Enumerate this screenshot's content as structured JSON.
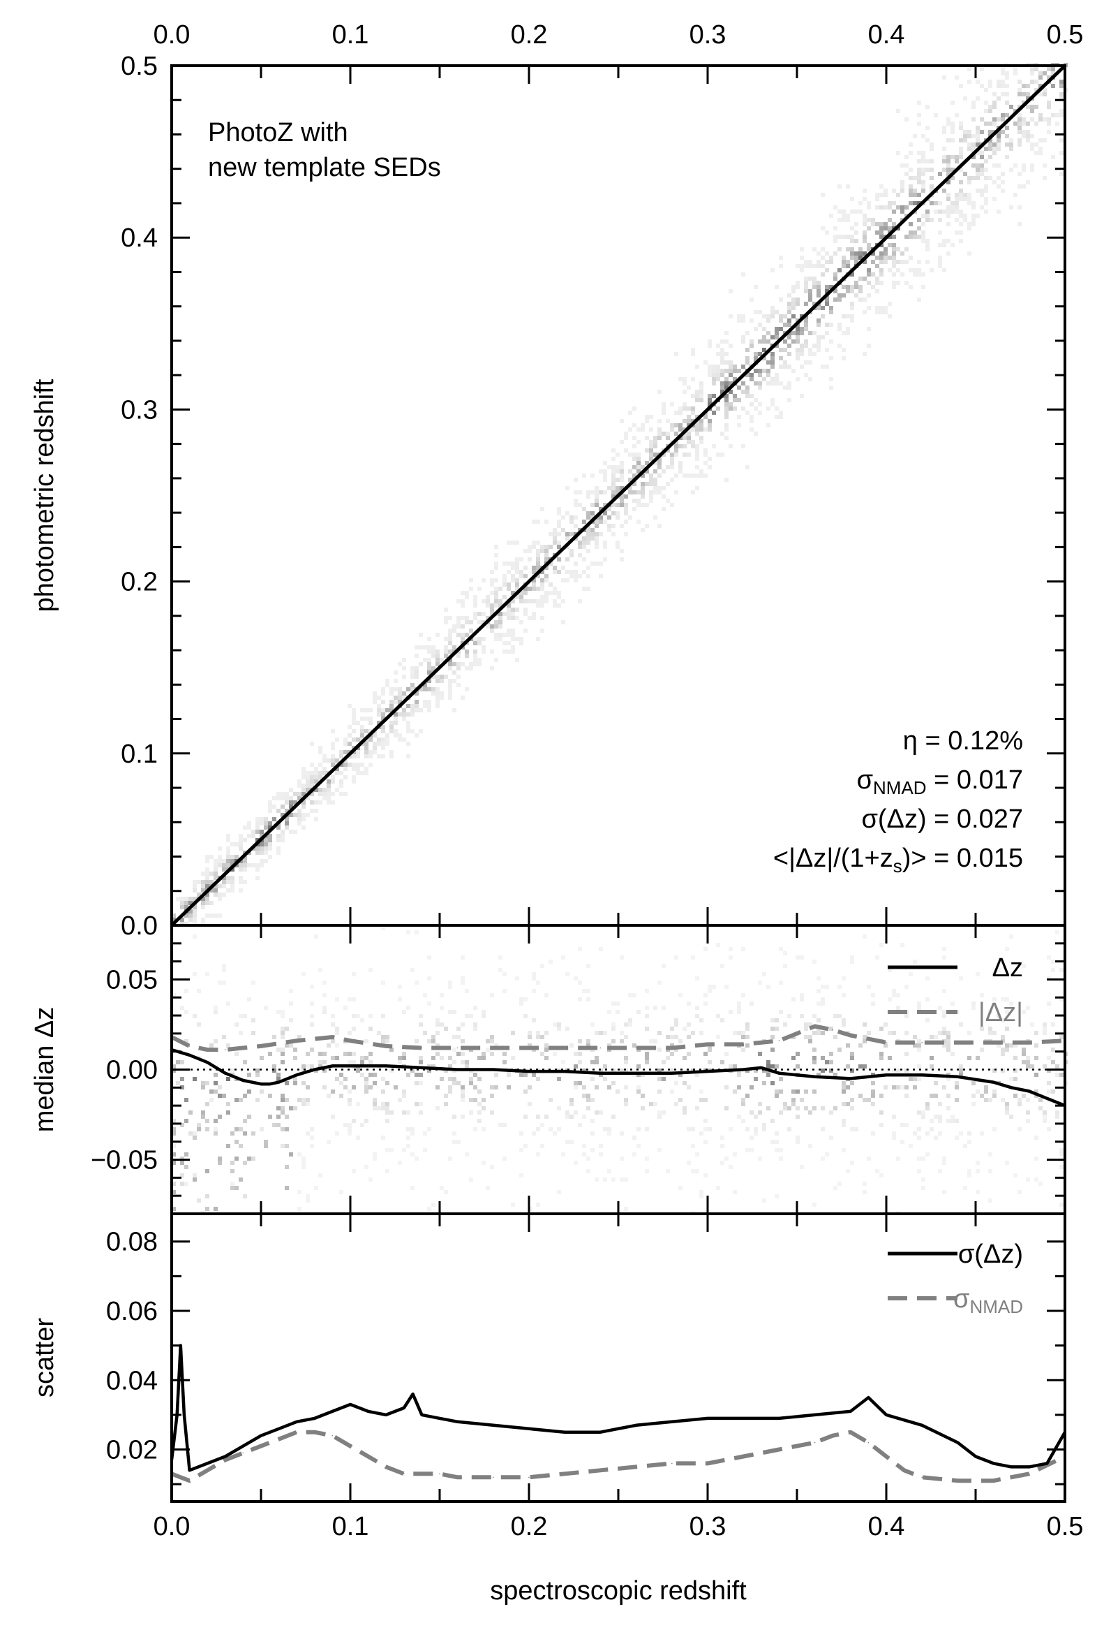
{
  "chart_data": [
    {
      "panel": "top",
      "type": "scatter",
      "title": "",
      "annotation_lines": [
        "PhotoZ with",
        "new template SEDs"
      ],
      "xlabel": "",
      "ylabel": "photometric redshift",
      "xlim": [
        0.0,
        0.5
      ],
      "ylim": [
        0.0,
        0.5
      ],
      "xticks": [
        "0.0",
        "0.1",
        "0.2",
        "0.3",
        "0.4",
        "0.5"
      ],
      "yticks": [
        "0.0",
        "0.1",
        "0.2",
        "0.3",
        "0.4",
        "0.5"
      ],
      "top_axis_ticks": [
        "0.0",
        "0.1",
        "0.2",
        "0.3",
        "0.4",
        "0.5"
      ],
      "reference_line": {
        "x": [
          0.0,
          0.5
        ],
        "y": [
          0.0,
          0.5
        ]
      },
      "density": "2D histogram of galaxies concentrated along the one-to-one line",
      "stats": [
        {
          "symbol": "η",
          "sub": "",
          "rest": " = 0.12%"
        },
        {
          "symbol": "σ",
          "sub": "NMAD",
          "rest": " = 0.017"
        },
        {
          "symbol": "σ",
          "sub": "",
          "rest": "(Δz) = 0.027"
        },
        {
          "symbol": "<|Δz|/(1+z",
          "sub": "s",
          "rest": ")> = 0.015"
        }
      ]
    },
    {
      "panel": "middle",
      "type": "line",
      "ylabel": "median Δz",
      "xlim": [
        0.0,
        0.5
      ],
      "ylim": [
        -0.08,
        0.08
      ],
      "yticks": [
        "0.05",
        "0.00",
        "−0.05"
      ],
      "zero_line": 0.0,
      "series": [
        {
          "name": "Δz",
          "color": "#000000",
          "style": "solid",
          "x": [
            0.0,
            0.01,
            0.02,
            0.03,
            0.04,
            0.05,
            0.055,
            0.06,
            0.07,
            0.08,
            0.09,
            0.1,
            0.12,
            0.14,
            0.16,
            0.18,
            0.2,
            0.22,
            0.24,
            0.26,
            0.28,
            0.3,
            0.32,
            0.33,
            0.34,
            0.36,
            0.38,
            0.4,
            0.42,
            0.44,
            0.46,
            0.47,
            0.48,
            0.49,
            0.5
          ],
          "y": [
            0.011,
            0.008,
            0.004,
            -0.002,
            -0.006,
            -0.008,
            -0.008,
            -0.007,
            -0.003,
            0.0,
            0.002,
            0.002,
            0.002,
            0.001,
            0.0,
            0.0,
            -0.001,
            -0.001,
            -0.002,
            -0.002,
            -0.002,
            -0.001,
            0.0,
            0.001,
            -0.002,
            -0.004,
            -0.005,
            -0.003,
            -0.003,
            -0.004,
            -0.007,
            -0.01,
            -0.012,
            -0.016,
            -0.02
          ]
        },
        {
          "name": "|Δz|",
          "color": "#808080",
          "style": "dashed",
          "x": [
            0.0,
            0.01,
            0.02,
            0.03,
            0.05,
            0.07,
            0.09,
            0.1,
            0.12,
            0.14,
            0.16,
            0.18,
            0.2,
            0.22,
            0.24,
            0.26,
            0.28,
            0.3,
            0.32,
            0.34,
            0.35,
            0.36,
            0.37,
            0.38,
            0.39,
            0.4,
            0.42,
            0.44,
            0.46,
            0.48,
            0.5
          ],
          "y": [
            0.018,
            0.013,
            0.011,
            0.011,
            0.013,
            0.016,
            0.018,
            0.016,
            0.013,
            0.012,
            0.012,
            0.012,
            0.012,
            0.012,
            0.012,
            0.012,
            0.012,
            0.014,
            0.014,
            0.016,
            0.02,
            0.024,
            0.022,
            0.019,
            0.017,
            0.015,
            0.015,
            0.015,
            0.015,
            0.015,
            0.016
          ]
        }
      ]
    },
    {
      "panel": "bottom",
      "type": "line",
      "xlabel": "spectroscopic redshift",
      "ylabel": "scatter",
      "xlim": [
        0.0,
        0.5
      ],
      "ylim": [
        0.005,
        0.088
      ],
      "xticks": [
        "0.0",
        "0.1",
        "0.2",
        "0.3",
        "0.4",
        "0.5"
      ],
      "yticks": [
        "0.08",
        "0.06",
        "0.04",
        "0.02"
      ],
      "series": [
        {
          "name": "σ(Δz)",
          "color": "#000000",
          "style": "solid",
          "x": [
            0.0,
            0.003,
            0.005,
            0.007,
            0.01,
            0.02,
            0.03,
            0.04,
            0.05,
            0.06,
            0.07,
            0.08,
            0.09,
            0.1,
            0.11,
            0.12,
            0.13,
            0.135,
            0.14,
            0.15,
            0.16,
            0.18,
            0.2,
            0.22,
            0.24,
            0.26,
            0.28,
            0.3,
            0.32,
            0.34,
            0.36,
            0.38,
            0.39,
            0.4,
            0.42,
            0.44,
            0.45,
            0.46,
            0.47,
            0.48,
            0.49,
            0.5
          ],
          "y": [
            0.017,
            0.03,
            0.05,
            0.03,
            0.014,
            0.016,
            0.018,
            0.021,
            0.024,
            0.026,
            0.028,
            0.029,
            0.031,
            0.033,
            0.031,
            0.03,
            0.032,
            0.036,
            0.03,
            0.029,
            0.028,
            0.027,
            0.026,
            0.025,
            0.025,
            0.027,
            0.028,
            0.029,
            0.029,
            0.029,
            0.03,
            0.031,
            0.035,
            0.03,
            0.027,
            0.022,
            0.018,
            0.016,
            0.015,
            0.015,
            0.016,
            0.025
          ]
        },
        {
          "name": "σ_NMAD",
          "color": "#808080",
          "style": "dashed",
          "x": [
            0.0,
            0.005,
            0.01,
            0.02,
            0.03,
            0.04,
            0.05,
            0.06,
            0.07,
            0.08,
            0.09,
            0.1,
            0.11,
            0.12,
            0.13,
            0.14,
            0.15,
            0.16,
            0.18,
            0.2,
            0.22,
            0.24,
            0.26,
            0.28,
            0.3,
            0.32,
            0.34,
            0.36,
            0.37,
            0.38,
            0.39,
            0.4,
            0.41,
            0.42,
            0.44,
            0.46,
            0.48,
            0.5
          ],
          "y": [
            0.013,
            0.012,
            0.011,
            0.014,
            0.017,
            0.019,
            0.021,
            0.023,
            0.025,
            0.025,
            0.024,
            0.021,
            0.018,
            0.015,
            0.013,
            0.013,
            0.013,
            0.012,
            0.012,
            0.012,
            0.013,
            0.014,
            0.015,
            0.016,
            0.016,
            0.018,
            0.02,
            0.022,
            0.024,
            0.025,
            0.022,
            0.018,
            0.014,
            0.012,
            0.011,
            0.011,
            0.013,
            0.018
          ]
        }
      ]
    }
  ]
}
